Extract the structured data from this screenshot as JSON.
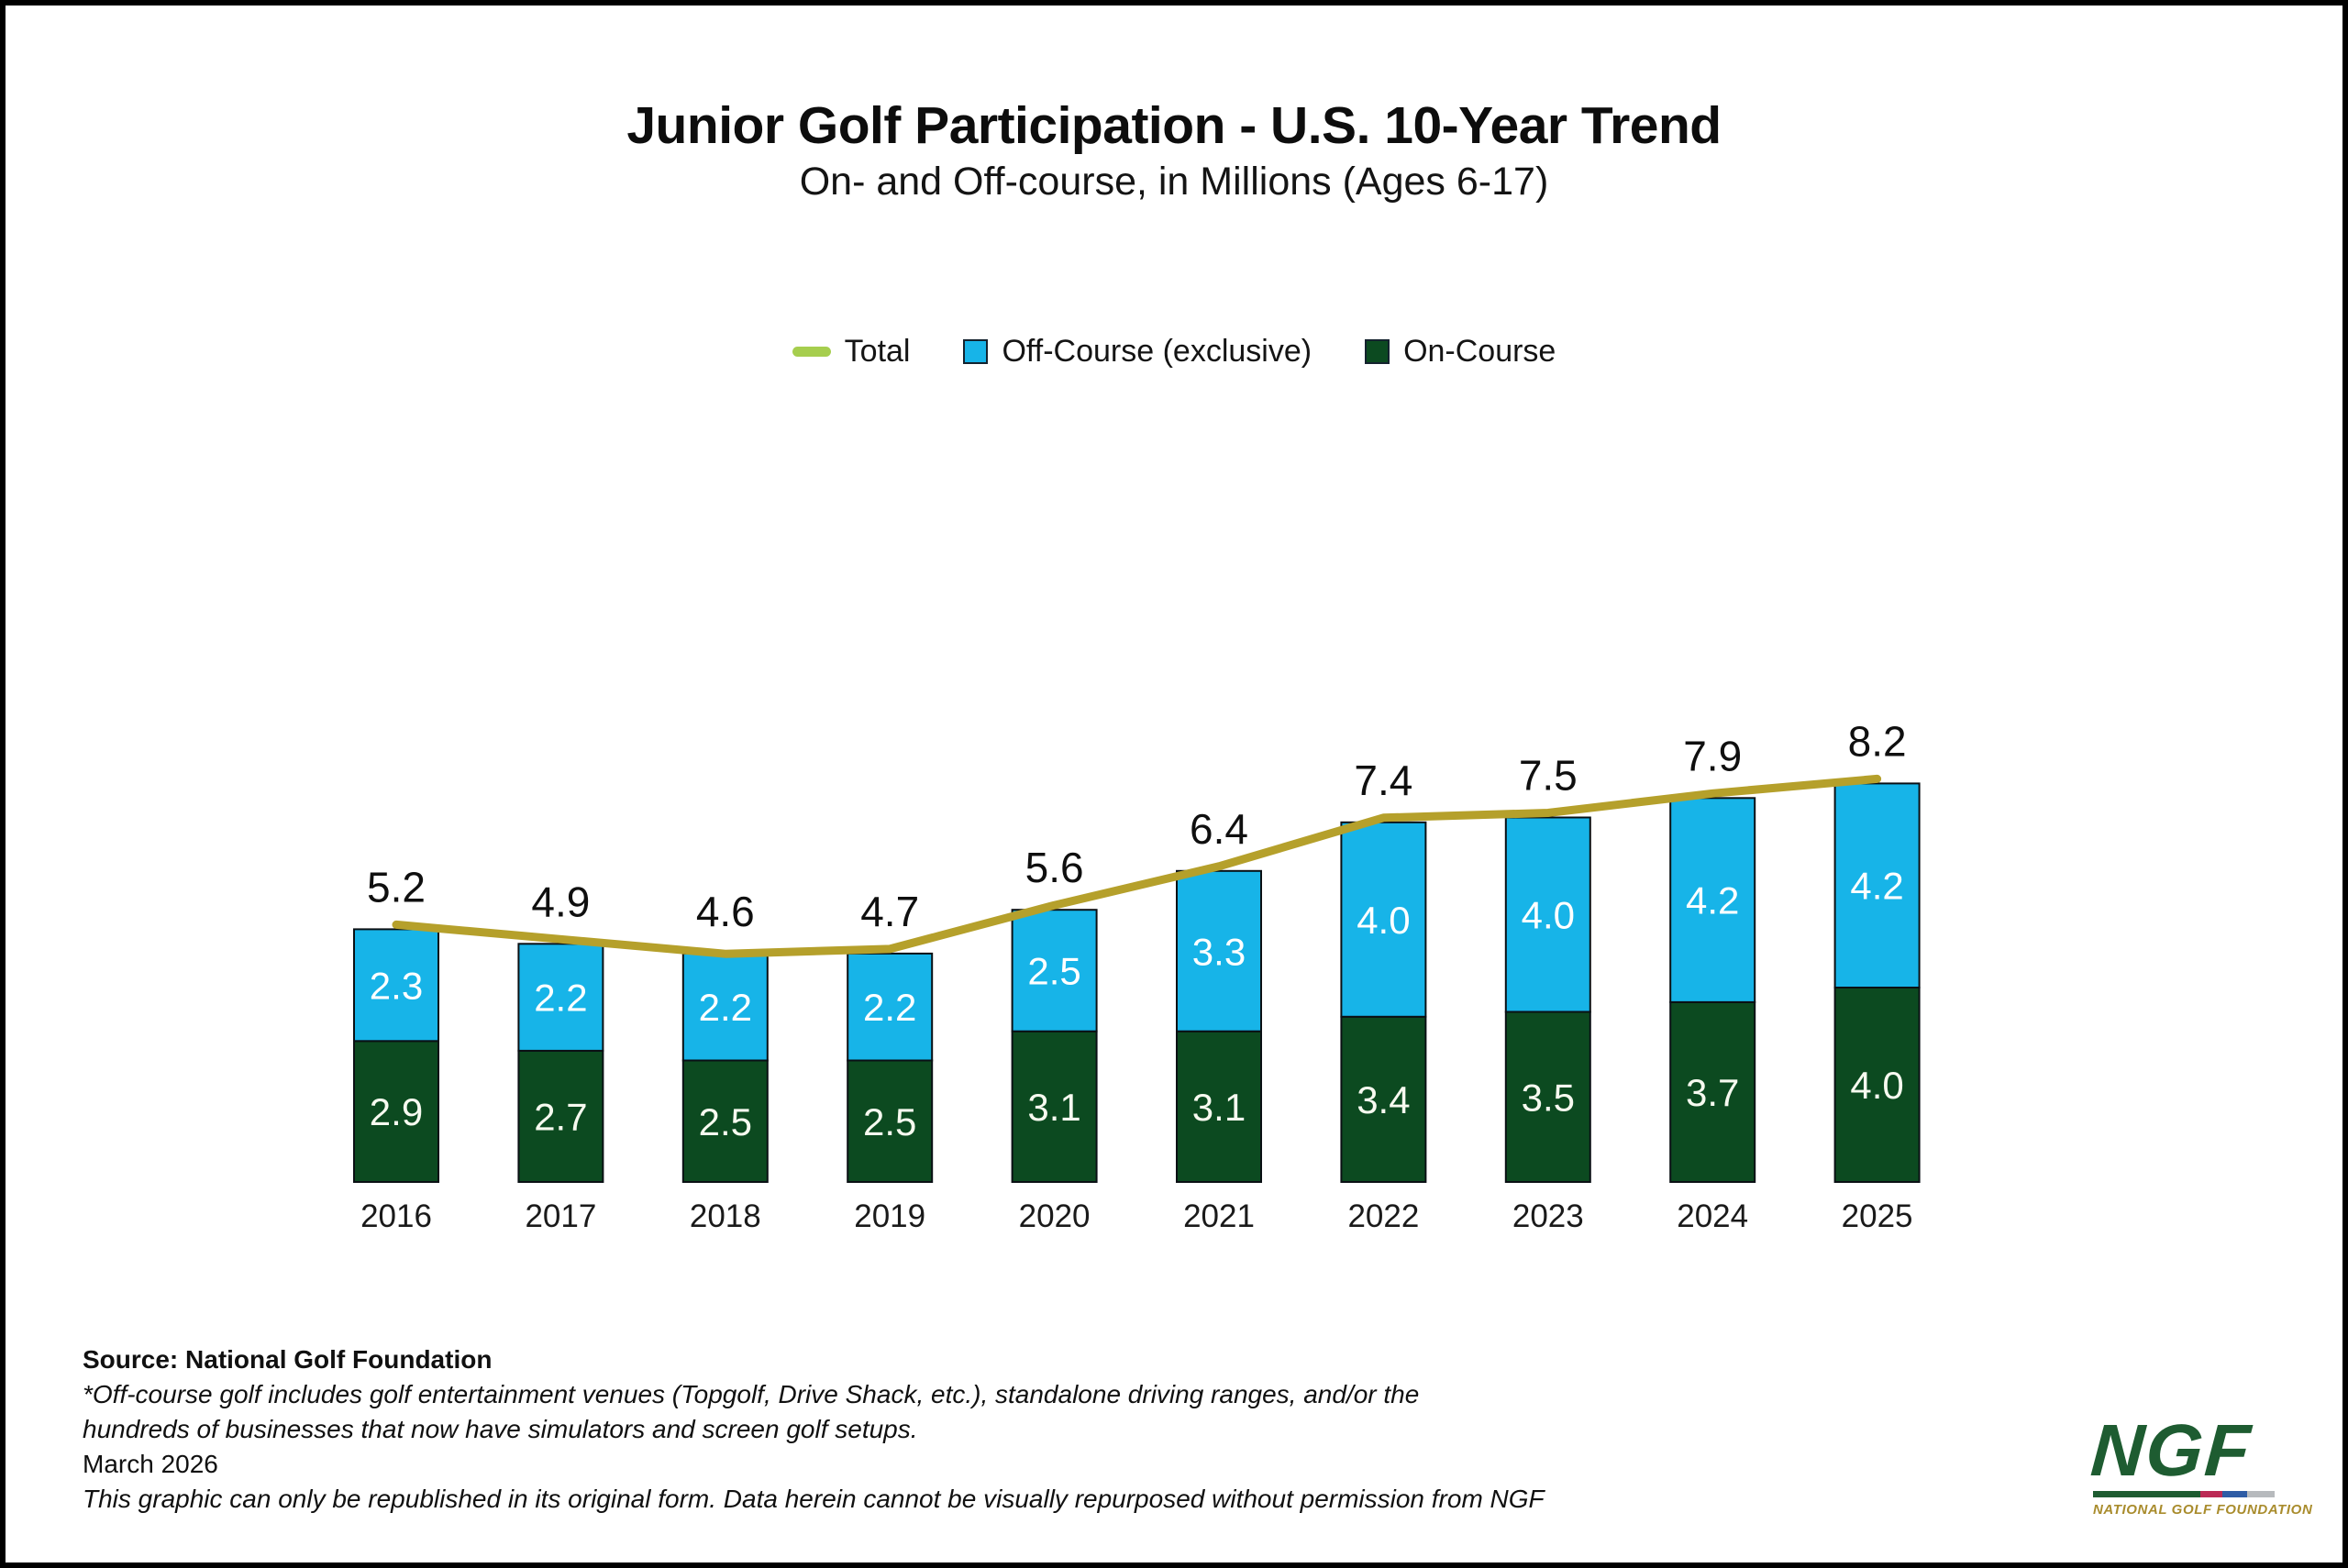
{
  "header": {
    "title": "Junior Golf Participation - U.S. 10-Year Trend",
    "subtitle": "On- and Off-course, in Millions (Ages 6-17)"
  },
  "legend": [
    {
      "label": "Total",
      "swatch": "line",
      "color": "#a6ce4e"
    },
    {
      "label": "Off-Course (exclusive)",
      "swatch": "square",
      "color": "#17b4e8"
    },
    {
      "label": "On-Course",
      "swatch": "square",
      "color": "#0c4a20"
    }
  ],
  "chart_data": {
    "type": "bar",
    "subtype": "stacked-bars-with-total-line",
    "categories": [
      "2016",
      "2017",
      "2018",
      "2019",
      "2020",
      "2021",
      "2022",
      "2023",
      "2024",
      "2025"
    ],
    "series": [
      {
        "name": "On-Course",
        "color": "#0c4a20",
        "label_color": "#f7faf0",
        "values": [
          2.9,
          2.7,
          2.5,
          2.5,
          3.1,
          3.1,
          3.4,
          3.5,
          3.7,
          4.0
        ]
      },
      {
        "name": "Off-Course (exclusive)",
        "color": "#17b4e8",
        "label_color": "#ffffff",
        "values": [
          2.3,
          2.2,
          2.2,
          2.2,
          2.5,
          3.3,
          4.0,
          4.0,
          4.2,
          4.2
        ]
      }
    ],
    "line": {
      "name": "Total",
      "color": "#b5a02b",
      "values": [
        5.2,
        4.9,
        4.6,
        4.7,
        5.6,
        6.4,
        7.4,
        7.5,
        7.9,
        8.2
      ]
    },
    "total_label_color": "#0f0f0f",
    "bar_outline_color": "#0a1014",
    "title": "Junior Golf Participation - U.S. 10-Year Trend",
    "xlabel": "",
    "ylabel": "",
    "ylim": [
      0,
      9
    ],
    "grid": false,
    "axes_visible": false,
    "legend_position": "top",
    "value_labels": true
  },
  "footer": {
    "source": "Source: National Golf Foundation",
    "disclaimer_lines": [
      "*Off-course golf includes golf entertainment venues (Topgolf, Drive Shack, etc.), standalone driving ranges, and/or the",
      "hundreds of businesses that now have simulators and screen golf setups."
    ],
    "date": "March 2026",
    "republish_note": "This graphic can only be republished in its original form. Data herein cannot be visually repurposed without permission from NGF"
  },
  "logo": {
    "acronym": "NGF",
    "name": "NATIONAL GOLF FOUNDATION",
    "green": "#1e5c31",
    "gold": "#a98c2d",
    "bar_segments": [
      {
        "color": "#1e5c31",
        "width_pct": 59
      },
      {
        "color": "#bb2a55",
        "width_pct": 12
      },
      {
        "color": "#2e5ca5",
        "width_pct": 14
      },
      {
        "color": "#b7babd",
        "width_pct": 15
      }
    ]
  }
}
